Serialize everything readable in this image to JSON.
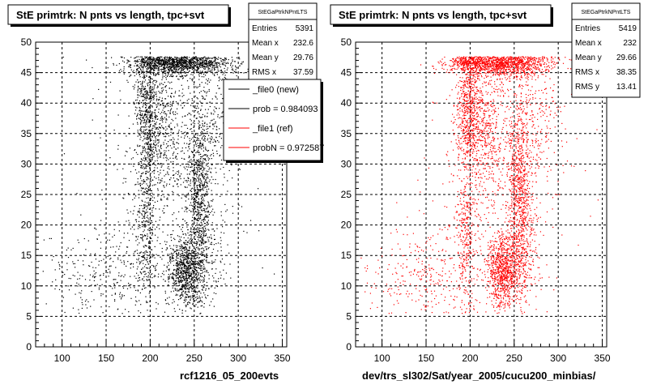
{
  "chart_data": [
    {
      "type": "scatter",
      "title": "StE primtrk: N pnts vs length, tpc+svt",
      "xlabel": "rcf1216_05_200evts",
      "ylabel": "",
      "xlim": [
        70,
        355
      ],
      "ylim": [
        0,
        50
      ],
      "xticks": [
        100,
        150,
        200,
        250,
        300,
        350
      ],
      "yticks": [
        0,
        5,
        10,
        15,
        20,
        25,
        30,
        35,
        40,
        45,
        50
      ],
      "grid": true,
      "marker_color": "#000000",
      "stats": {
        "name": "StEGaPtrkNPntLTS",
        "rows": [
          {
            "label": "Entries",
            "value": "5391"
          },
          {
            "label": "Mean x",
            "value": "232.6"
          },
          {
            "label": "Mean y",
            "value": "29.76"
          },
          {
            "label": "RMS x",
            "value": "37.59"
          }
        ]
      },
      "legend": {
        "placement": "top-right",
        "entries": [
          {
            "label": "_file0 (new)",
            "color": "#000000"
          },
          {
            "label": "prob = 0.984093",
            "color": "#000000"
          },
          {
            "label": "_file1 (ref)",
            "color": "#ff0000"
          },
          {
            "label": "probN = 0.972587",
            "color": "#ff0000"
          }
        ]
      },
      "clusters": [
        {
          "cx": 235,
          "cy": 46.5,
          "sx": 28,
          "sy": 1.0,
          "n": 1150
        },
        {
          "cx": 196,
          "cy": 38,
          "sx": 7,
          "sy": 7,
          "n": 700
        },
        {
          "cx": 240,
          "cy": 12.5,
          "sx": 10,
          "sy": 3,
          "n": 900
        },
        {
          "cx": 255,
          "cy": 25,
          "sx": 7,
          "sy": 7,
          "n": 800
        },
        {
          "cx": 215,
          "cy": 36,
          "sx": 12,
          "sy": 6,
          "n": 450
        },
        {
          "cx": 150,
          "cy": 12,
          "sx": 35,
          "sy": 4,
          "n": 300
        },
        {
          "cx": 195,
          "cy": 18,
          "sx": 6,
          "sy": 6,
          "n": 300
        },
        {
          "cx": 230,
          "cy": 28,
          "sx": 40,
          "sy": 12,
          "n": 400
        },
        {
          "cx": 270,
          "cy": 38,
          "sx": 18,
          "sy": 6,
          "n": 250
        },
        {
          "cx": 265,
          "cy": 15,
          "sx": 10,
          "sy": 5,
          "n": 140
        }
      ]
    },
    {
      "type": "scatter",
      "title": "StE primtrk: N pnts vs length, tpc+svt",
      "xlabel": "dev/trs_sl302/Sat/year_2005/cucu200_minbias/",
      "ylabel": "",
      "xlim": [
        70,
        355
      ],
      "ylim": [
        0,
        50
      ],
      "xticks": [
        100,
        150,
        200,
        250,
        300,
        350
      ],
      "yticks": [
        0,
        5,
        10,
        15,
        20,
        25,
        30,
        35,
        40,
        45,
        50
      ],
      "grid": true,
      "marker_color": "#ff0000",
      "stats": {
        "name": "StEGaPtrkNPntLTS",
        "rows": [
          {
            "label": "Entries",
            "value": "5419"
          },
          {
            "label": "Mean x",
            "value": "232"
          },
          {
            "label": "Mean y",
            "value": "29.66"
          },
          {
            "label": "RMS x",
            "value": "38.35"
          },
          {
            "label": "RMS y",
            "value": "13.41"
          }
        ]
      },
      "clusters": [
        {
          "cx": 235,
          "cy": 46.5,
          "sx": 28,
          "sy": 1.0,
          "n": 1150
        },
        {
          "cx": 198,
          "cy": 40,
          "sx": 7,
          "sy": 6,
          "n": 700
        },
        {
          "cx": 238,
          "cy": 12.5,
          "sx": 10,
          "sy": 3,
          "n": 900
        },
        {
          "cx": 255,
          "cy": 25,
          "sx": 7,
          "sy": 7,
          "n": 800
        },
        {
          "cx": 215,
          "cy": 36,
          "sx": 12,
          "sy": 6,
          "n": 450
        },
        {
          "cx": 150,
          "cy": 12,
          "sx": 35,
          "sy": 4,
          "n": 300
        },
        {
          "cx": 195,
          "cy": 18,
          "sx": 6,
          "sy": 6,
          "n": 300
        },
        {
          "cx": 230,
          "cy": 28,
          "sx": 40,
          "sy": 12,
          "n": 400
        },
        {
          "cx": 272,
          "cy": 38,
          "sx": 18,
          "sy": 6,
          "n": 270
        },
        {
          "cx": 265,
          "cy": 15,
          "sx": 10,
          "sy": 5,
          "n": 150
        }
      ]
    }
  ]
}
